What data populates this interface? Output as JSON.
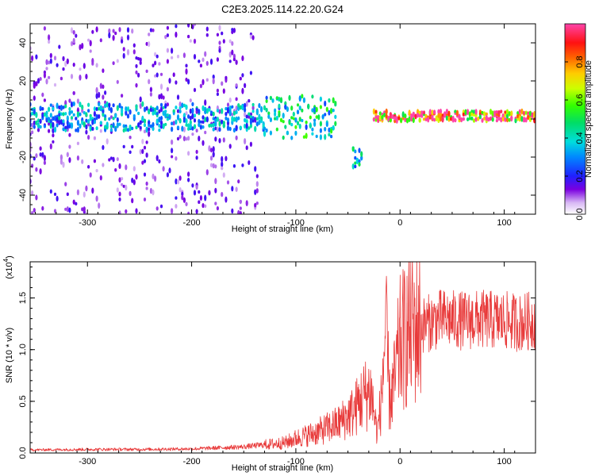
{
  "title": "C2E3.2025.114.22.20.G24",
  "chart_data": [
    {
      "type": "heatmap",
      "xlabel": "Height of straight line (km)",
      "ylabel": "Frequency (Hz)",
      "xlim": [
        -355,
        130
      ],
      "ylim": [
        -50,
        50
      ],
      "xticks": [
        -300,
        -200,
        -100,
        0,
        100
      ],
      "xtick_labels": [
        "-300",
        "-200",
        "-100",
        "0",
        "100"
      ],
      "yticks": [
        -40,
        -20,
        0,
        20,
        40
      ],
      "ytick_labels": [
        "-40",
        "-20",
        "0",
        "20",
        "40"
      ],
      "colorbar": {
        "label": "Normalized spectral amplitude",
        "range": [
          0,
          1
        ],
        "ticks": [
          0.0,
          0.2,
          0.4,
          0.6,
          0.8
        ],
        "tick_labels": [
          "0.0",
          "0.2",
          "0.4",
          "0.6",
          "0.8"
        ]
      },
      "regions": [
        {
          "x": [
            -355,
            -135
          ],
          "freq": [
            -50,
            50
          ],
          "amplitude": 0.15,
          "note_pattern": "diffuse purple scatter"
        },
        {
          "x": [
            -355,
            -130
          ],
          "freq": [
            -6,
            8
          ],
          "amplitude": 0.35
        },
        {
          "x": [
            -130,
            -60
          ],
          "freq": [
            -10,
            12
          ],
          "amplitude": 0.45
        },
        {
          "x": [
            -45,
            -35
          ],
          "freq": [
            -25,
            -15
          ],
          "amplitude": 0.4
        },
        {
          "x": [
            -25,
            130
          ],
          "freq": [
            -1,
            4
          ],
          "amplitude": 0.95
        }
      ],
      "grid": false
    },
    {
      "type": "line",
      "xlabel": "Height of straight line (km)",
      "ylabel": "SNR (10 * v/v)",
      "yscale_label": "(x10",
      "yscale_exp": "4",
      "xlim": [
        -355,
        130
      ],
      "ylim": [
        0,
        18500
      ],
      "xticks": [
        -300,
        -200,
        -100,
        0,
        100
      ],
      "xtick_labels": [
        "-300",
        "-200",
        "-100",
        "0",
        "100"
      ],
      "yticks": [
        0,
        5000,
        10000,
        15000
      ],
      "ytick_labels": [
        "0.0",
        "0.5",
        "1.0",
        "1.5"
      ],
      "series_color": "#e83a3a",
      "trend": {
        "x": [
          -355,
          -300,
          -250,
          -200,
          -150,
          -120,
          -110,
          -100,
          -80,
          -60,
          -45,
          -35,
          -28,
          -22,
          -18,
          -14,
          -10,
          -5,
          0,
          10,
          25,
          40,
          60,
          80,
          100,
          115,
          130
        ],
        "y": [
          300,
          350,
          350,
          400,
          600,
          900,
          1000,
          1400,
          2000,
          2800,
          4000,
          5500,
          6000,
          2000,
          5000,
          12000,
          5000,
          7000,
          10500,
          12000,
          12500,
          13000,
          12800,
          12900,
          12800,
          12600,
          12900
        ]
      },
      "grid": false
    }
  ]
}
